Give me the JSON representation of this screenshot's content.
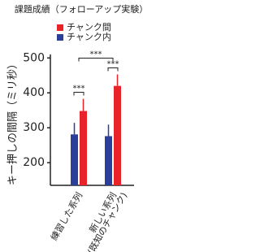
{
  "chart_data": {
    "type": "bar",
    "title": "課題成績（フォローアップ実験）",
    "y_label": "キー押しの間隔（ミリ秒）",
    "categories": [
      "練習した系列",
      "新しい系列"
    ],
    "category_notes": [
      null,
      "(既知のチャンク)"
    ],
    "series": [
      {
        "name": "チャンク間",
        "color": "#e8242a",
        "values": [
          348,
          420
        ],
        "errors": [
          35,
          33
        ]
      },
      {
        "name": "チャンク内",
        "color": "#2a3f9a",
        "values": [
          281,
          276
        ],
        "errors": [
          33,
          33
        ]
      }
    ],
    "significance": [
      "***",
      "***",
      "***"
    ],
    "ylim": [
      135,
      510
    ],
    "yticks": [
      200,
      300,
      400,
      500
    ],
    "grid": false
  }
}
